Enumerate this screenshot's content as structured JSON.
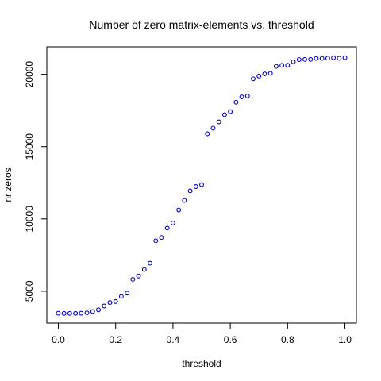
{
  "chart_data": {
    "type": "scatter",
    "title": "Number of zero matrix-elements vs. threshold",
    "xlabel": "threshold",
    "ylabel": "nr zeros",
    "xlim": [
      -0.04,
      1.04
    ],
    "ylim": [
      2800,
      21900
    ],
    "x_ticks": [
      {
        "value": 0.0,
        "label": "0.0"
      },
      {
        "value": 0.2,
        "label": "0.2"
      },
      {
        "value": 0.4,
        "label": "0.4"
      },
      {
        "value": 0.6,
        "label": "0.6"
      },
      {
        "value": 0.8,
        "label": "0.8"
      },
      {
        "value": 1.0,
        "label": "1.0"
      }
    ],
    "y_ticks": [
      {
        "value": 5000,
        "label": "5000"
      },
      {
        "value": 10000,
        "label": "10000"
      },
      {
        "value": 15000,
        "label": "15000"
      },
      {
        "value": 20000,
        "label": "20000"
      }
    ],
    "grid": false,
    "legend": "none",
    "point_color": "#0000cc",
    "x": [
      0.0,
      0.02,
      0.04,
      0.06,
      0.08,
      0.1,
      0.12,
      0.14,
      0.16,
      0.18,
      0.2,
      0.22,
      0.24,
      0.26,
      0.28,
      0.3,
      0.32,
      0.34,
      0.36,
      0.38,
      0.4,
      0.42,
      0.44,
      0.46,
      0.48,
      0.5,
      0.52,
      0.54,
      0.56,
      0.58,
      0.6,
      0.62,
      0.64,
      0.66,
      0.68,
      0.7,
      0.72,
      0.74,
      0.76,
      0.78,
      0.8,
      0.82,
      0.84,
      0.86,
      0.88,
      0.9,
      0.92,
      0.94,
      0.96,
      0.98,
      1.0
    ],
    "y": [
      3480,
      3470,
      3470,
      3470,
      3480,
      3510,
      3600,
      3720,
      3980,
      4220,
      4290,
      4640,
      4870,
      5820,
      6050,
      6500,
      6940,
      8490,
      8720,
      9370,
      9720,
      10620,
      11280,
      11940,
      12240,
      12370,
      15890,
      16280,
      16710,
      17210,
      17420,
      18070,
      18440,
      18500,
      19690,
      19880,
      20030,
      20070,
      20550,
      20620,
      20630,
      20870,
      21020,
      21030,
      21030,
      21100,
      21100,
      21120,
      21140,
      21110,
      21150
    ]
  }
}
